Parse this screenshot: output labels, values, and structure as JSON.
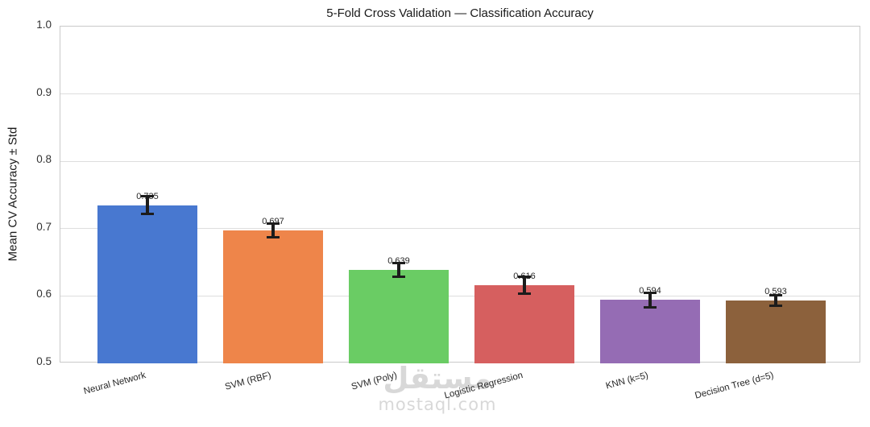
{
  "chart_data": {
    "type": "bar",
    "title": "5-Fold Cross Validation — Classification Accuracy",
    "xlabel": "",
    "ylabel": "Mean CV Accuracy ± Std",
    "categories": [
      "Neural Network",
      "SVM (RBF)",
      "SVM (Poly)",
      "Logistic Regression",
      "KNN (k=5)",
      "Decision Tree (d=5)"
    ],
    "values": [
      0.735,
      0.697,
      0.639,
      0.616,
      0.594,
      0.593
    ],
    "errors": [
      0.013,
      0.01,
      0.01,
      0.012,
      0.011,
      0.008
    ],
    "value_labels": [
      "0.735",
      "0.697",
      "0.639",
      "0.616",
      "0.594",
      "0.593"
    ],
    "bar_colors": [
      "#4878D0",
      "#EE854A",
      "#6ACC64",
      "#D65F5F",
      "#956CB4",
      "#8C613C"
    ],
    "error_bar_color": "#1c1c1c",
    "ylim": [
      0.5,
      1.0
    ],
    "y_ticks": [
      "1.0",
      "0.9",
      "0.8",
      "0.7",
      "0.6",
      "0.5"
    ],
    "grid": true,
    "legend": "none"
  },
  "watermark": {
    "arabic": "مستقل",
    "domain": "mostaql.com"
  }
}
